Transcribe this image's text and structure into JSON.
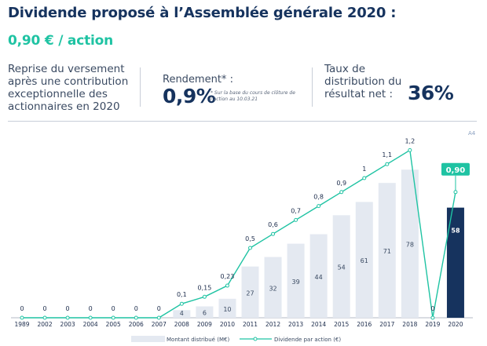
{
  "header": {
    "title": "Dividende proposé à l’Assemblée générale 2020 :",
    "subtitle": "0,90 € / action"
  },
  "kpis": {
    "reprise_text": "Reprise du versement après une contribution exceptionnelle des actionnaires en 2020",
    "rendement_label": "Rendement* :",
    "rendement_value": "0,9%",
    "rendement_note": "* Sur la base du cours de clôture de l’action au 10.03.21",
    "taux_label": "Taux de distribution du résultat net :",
    "taux_value": "36%"
  },
  "page_number": "A4",
  "colors": {
    "navy": "#16335e",
    "teal": "#1fc3a3",
    "bar_light": "#e4e9f1",
    "bar_highlight": "#16335e"
  },
  "chart_data": {
    "type": "bar",
    "categories": [
      "1989",
      "2002",
      "2003",
      "2004",
      "2005",
      "2006",
      "2007",
      "2008",
      "2009",
      "2010",
      "2011",
      "2012",
      "2013",
      "2014",
      "2015",
      "2016",
      "2017",
      "2018",
      "2019",
      "2020"
    ],
    "series": [
      {
        "name": "Montant distribué (M€)",
        "type": "bar",
        "values": [
          null,
          null,
          null,
          null,
          null,
          null,
          null,
          4,
          6,
          10,
          27,
          32,
          39,
          44,
          54,
          61,
          71,
          78,
          null,
          58
        ],
        "labels": [
          "",
          "",
          "",
          "",
          "",
          "",
          "",
          "4",
          "6",
          "10",
          "27",
          "32",
          "39",
          "44",
          "54",
          "61",
          "71",
          "78",
          "",
          "58"
        ]
      },
      {
        "name": "Dividende par action (€)",
        "type": "line",
        "values": [
          0,
          0,
          0,
          0,
          0,
          0,
          0,
          0.1,
          0.15,
          0.23,
          0.5,
          0.6,
          0.7,
          0.8,
          0.9,
          1,
          1.1,
          1.2,
          0,
          0.9
        ],
        "labels": [
          "0",
          "0",
          "0",
          "0",
          "0",
          "0",
          "0",
          "0,1",
          "0,15",
          "0,23",
          "0,5",
          "0,6",
          "0,7",
          "0,8",
          "0,9",
          "1",
          "1,1",
          "1,2",
          "0",
          "0,90"
        ]
      }
    ],
    "highlight_category": "2020",
    "legend_position": "bottom"
  }
}
